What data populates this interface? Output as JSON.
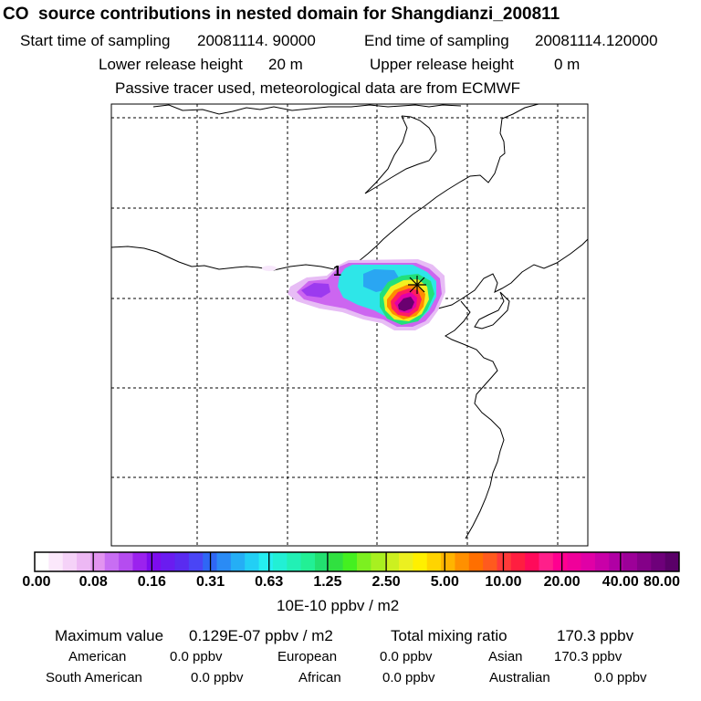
{
  "header": {
    "title": "CO  source contributions in nested domain for Shangdianzi_200811",
    "start_label": "Start time of sampling",
    "start_value": "20081114. 90000",
    "end_label": "End time of sampling",
    "end_value": "20081114.120000",
    "lower_label": "Lower release height",
    "lower_value": "20 m",
    "upper_label": "Upper release height",
    "upper_value": "0 m",
    "tracer_note": "Passive tracer used, meteorological data are from ECMWF"
  },
  "map": {
    "receptor_label": "1",
    "receptor_marker": "cross-marker"
  },
  "colorbar": {
    "unit": "10E-10 ppbv / m2",
    "ticks": [
      "0.00",
      "0.08",
      "0.16",
      "0.31",
      "0.63",
      "1.25",
      "2.50",
      "5.00",
      "10.00",
      "20.00",
      "40.00",
      "80.00"
    ],
    "colors": [
      "#ffffff",
      "#fbe8fb",
      "#f5d2f8",
      "#edb8f4",
      "#e294f0",
      "#c86ef3",
      "#b54cf0",
      "#9b22ee",
      "#7d0cee",
      "#6a1cf0",
      "#5a2bf0",
      "#4a45f5",
      "#2f67f5",
      "#2a8bf5",
      "#25aef5",
      "#22cff5",
      "#25eef0",
      "#22f0d5",
      "#22f0b5",
      "#22f095",
      "#22e070",
      "#30e040",
      "#44f020",
      "#7cf020",
      "#a8f020",
      "#ccf020",
      "#ecf020",
      "#fff000",
      "#ffd400",
      "#ffb400",
      "#ff9000",
      "#ff6f00",
      "#ff5a1e",
      "#ff3a3a",
      "#ff1e40",
      "#ff0a5a",
      "#ff1f8a",
      "#ff0090",
      "#f0009a",
      "#e000a6",
      "#c900a8",
      "#b000a4",
      "#9c0098",
      "#840088",
      "#6e007a",
      "#5a0068"
    ]
  },
  "footer": {
    "max_label": "Maximum value",
    "max_value": "0.129E-07 ppbv / m2",
    "total_label": "Total mixing ratio",
    "total_value": "170.3 ppbv",
    "regions": [
      {
        "name": "American",
        "value": "0.0 ppbv"
      },
      {
        "name": "European",
        "value": "0.0 ppbv"
      },
      {
        "name": "Asian",
        "value": "170.3 ppbv"
      },
      {
        "name": "South American",
        "value": "0.0 ppbv"
      },
      {
        "name": "African",
        "value": "0.0 ppbv"
      },
      {
        "name": "Australian",
        "value": "0.0 ppbv"
      }
    ]
  }
}
